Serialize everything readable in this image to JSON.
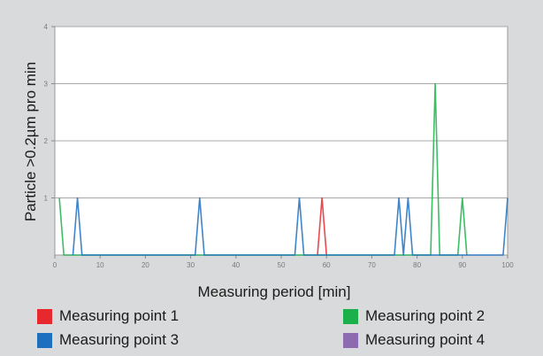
{
  "chart_data": {
    "type": "line",
    "title": "",
    "xlabel": "Measuring period [min]",
    "ylabel": "Particle >0.2µm pro min",
    "xlim": [
      0,
      100
    ],
    "ylim": [
      0,
      4
    ],
    "x_ticks": [
      0,
      10,
      20,
      30,
      40,
      50,
      60,
      70,
      80,
      90,
      100
    ],
    "y_ticks": [
      1,
      2,
      3,
      4
    ],
    "grid": "horizontal",
    "legend_position": "bottom",
    "series": [
      {
        "name": "Measuring point 1",
        "color": "#e8282f",
        "x": [
          58,
          59,
          60
        ],
        "y": [
          0,
          1,
          0
        ]
      },
      {
        "name": "Measuring point 2",
        "color": "#1cb04b",
        "x": [
          1,
          2,
          83,
          84,
          85,
          89,
          90,
          91
        ],
        "y": [
          1,
          0,
          0,
          3,
          0,
          0,
          1,
          0
        ]
      },
      {
        "name": "Measuring point 3",
        "color": "#1f6fbf",
        "x": [
          4,
          5,
          6,
          31,
          32,
          33,
          53,
          54,
          55,
          75,
          76,
          77,
          78,
          79,
          99,
          100
        ],
        "y": [
          0,
          1,
          0,
          0,
          1,
          0,
          0,
          1,
          0,
          0,
          1,
          0,
          1,
          0,
          0,
          1
        ]
      },
      {
        "name": "Measuring point 4",
        "color": "#8c6bb1",
        "x": [],
        "y": []
      }
    ]
  }
}
